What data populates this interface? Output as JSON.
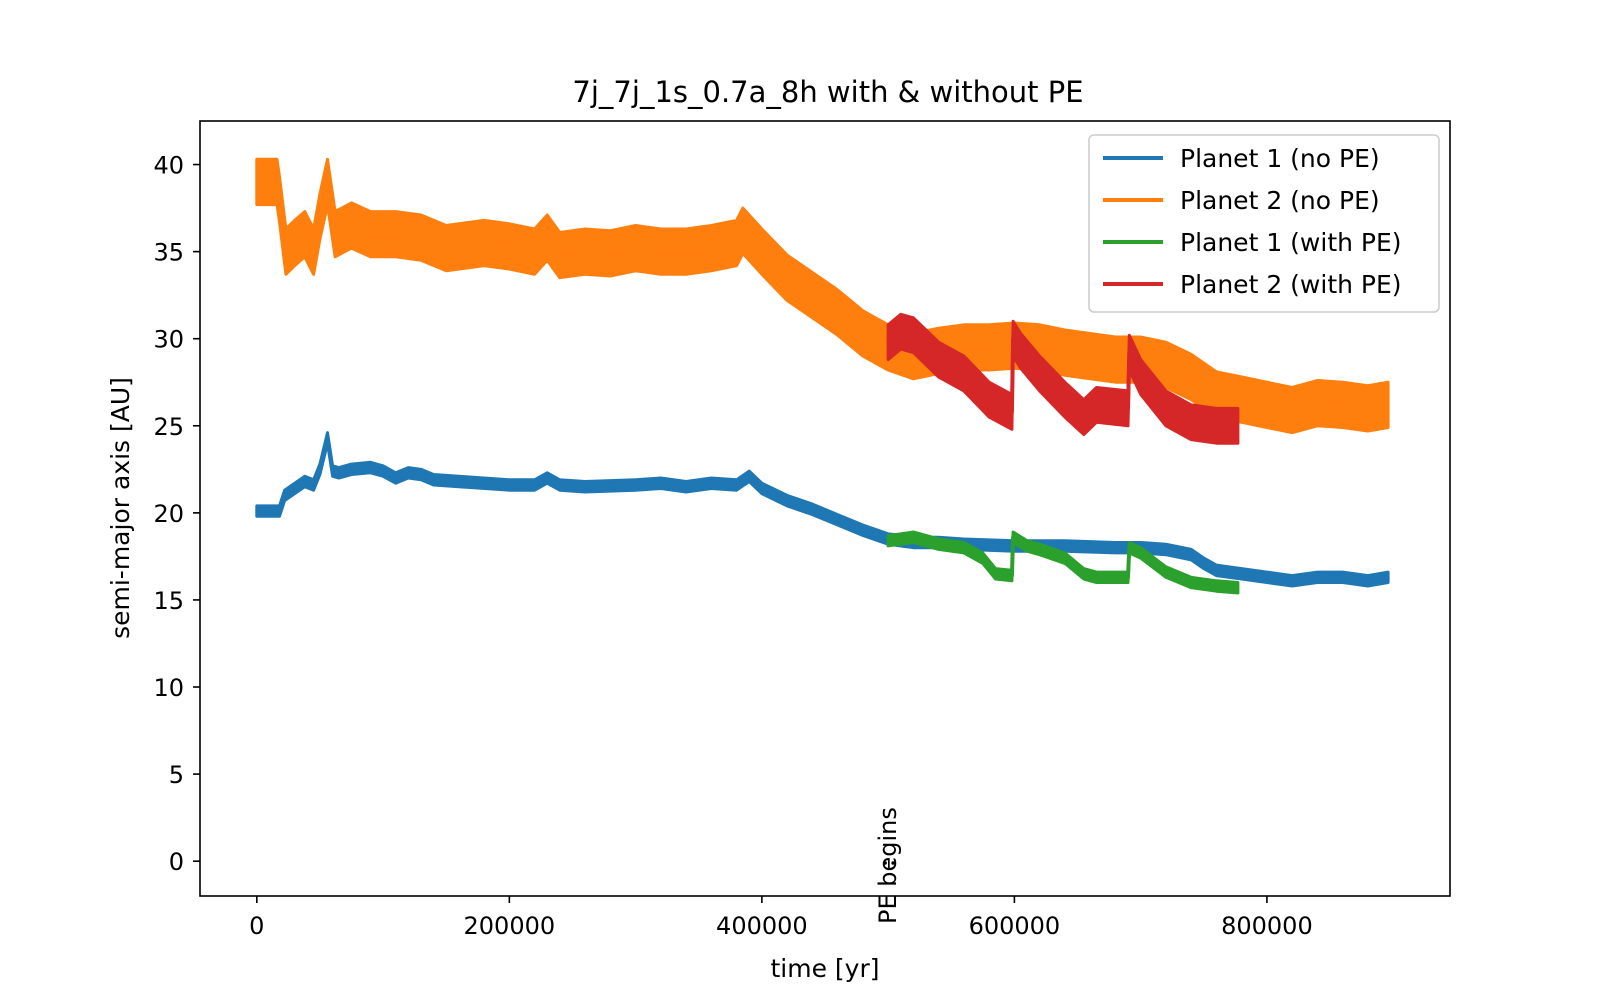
{
  "chart_data": {
    "type": "line",
    "title": "7j_7j_1s_0.7a_8h with & without PE",
    "xlabel": "time [yr]",
    "ylabel": "semi-major axis [AU]",
    "xlim": [
      -45000,
      945000
    ],
    "ylim": [
      -2,
      42.5
    ],
    "xticks": [
      0,
      200000,
      400000,
      600000,
      800000
    ],
    "yticks": [
      0,
      5,
      10,
      15,
      20,
      25,
      30,
      35,
      40
    ],
    "grid": false,
    "legend_position": "top-right",
    "annotation": {
      "text": "PE begins",
      "x": 500000,
      "y": 0,
      "orientation": "vertical"
    },
    "series": [
      {
        "name": "Planet 1 (no PE)",
        "color": "#1f77b4",
        "band": 0.3,
        "x": [
          0,
          18000,
          22000,
          30000,
          38000,
          45000,
          50000,
          56000,
          60000,
          65000,
          75000,
          90000,
          100000,
          110000,
          120000,
          130000,
          140000,
          160000,
          200000,
          220000,
          230000,
          240000,
          260000,
          300000,
          320000,
          340000,
          360000,
          380000,
          390000,
          400000,
          420000,
          440000,
          460000,
          480000,
          500000,
          520000,
          540000,
          560000,
          600000,
          640000,
          680000,
          700000,
          720000,
          740000,
          750000,
          760000,
          780000,
          800000,
          820000,
          840000,
          860000,
          880000,
          896000
        ],
        "y": [
          20.1,
          20.1,
          21.0,
          21.4,
          21.8,
          21.6,
          22.5,
          24.3,
          22.4,
          22.3,
          22.5,
          22.6,
          22.4,
          22.0,
          22.3,
          22.2,
          21.9,
          21.8,
          21.6,
          21.6,
          22.0,
          21.6,
          21.5,
          21.6,
          21.7,
          21.5,
          21.7,
          21.6,
          22.1,
          21.4,
          20.7,
          20.2,
          19.6,
          19.0,
          18.5,
          18.3,
          18.3,
          18.2,
          18.1,
          18.1,
          18.0,
          18.0,
          17.9,
          17.6,
          17.1,
          16.7,
          16.5,
          16.3,
          16.1,
          16.3,
          16.3,
          16.1,
          16.3
        ]
      },
      {
        "name": "Planet 2 (no PE)",
        "color": "#ff7f0e",
        "band": 1.3,
        "x": [
          0,
          16000,
          18000,
          23000,
          30000,
          38000,
          45000,
          50000,
          56000,
          62000,
          75000,
          90000,
          110000,
          130000,
          150000,
          180000,
          200000,
          220000,
          230000,
          240000,
          260000,
          280000,
          300000,
          320000,
          340000,
          360000,
          380000,
          385000,
          400000,
          420000,
          440000,
          460000,
          480000,
          500000,
          520000,
          540000,
          560000,
          580000,
          600000,
          620000,
          640000,
          660000,
          680000,
          700000,
          720000,
          740000,
          760000,
          780000,
          800000,
          820000,
          840000,
          860000,
          880000,
          896000
        ],
        "y": [
          39.0,
          39.0,
          38.0,
          35.0,
          35.5,
          36.0,
          35.0,
          37.0,
          39.0,
          36.0,
          36.5,
          36.0,
          36.0,
          35.8,
          35.2,
          35.5,
          35.3,
          35.0,
          35.8,
          34.8,
          35.0,
          34.9,
          35.2,
          35.0,
          35.0,
          35.2,
          35.5,
          36.2,
          35.0,
          33.5,
          32.5,
          31.5,
          30.3,
          29.5,
          29.0,
          29.3,
          29.5,
          29.5,
          29.6,
          29.5,
          29.2,
          29.0,
          28.8,
          28.8,
          28.5,
          27.8,
          26.8,
          26.5,
          26.2,
          25.9,
          26.3,
          26.2,
          26.0,
          26.2
        ]
      },
      {
        "name": "Planet 1 (with PE)",
        "color": "#2ca02c",
        "band": 0.3,
        "x": [
          500000,
          510000,
          520000,
          530000,
          540000,
          560000,
          575000,
          585000,
          598000,
          599000,
          610000,
          620000,
          640000,
          655000,
          665000,
          690000,
          691000,
          700000,
          720000,
          740000,
          760000,
          777000
        ],
        "y": [
          18.4,
          18.5,
          18.6,
          18.4,
          18.2,
          18.0,
          17.4,
          16.5,
          16.4,
          18.6,
          18.1,
          17.9,
          17.4,
          16.5,
          16.3,
          16.3,
          18.0,
          17.7,
          16.6,
          16.0,
          15.8,
          15.7
        ]
      },
      {
        "name": "Planet 2 (with PE)",
        "color": "#d62728",
        "band": 1.0,
        "x": [
          500000,
          510000,
          520000,
          530000,
          540000,
          560000,
          580000,
          598000,
          599000,
          605000,
          620000,
          640000,
          655000,
          665000,
          690000,
          691000,
          700000,
          720000,
          740000,
          760000,
          777000
        ],
        "y": [
          29.8,
          30.4,
          30.2,
          29.5,
          28.8,
          28.0,
          26.5,
          25.8,
          30.0,
          29.3,
          28.0,
          26.5,
          25.5,
          26.2,
          26.0,
          29.2,
          27.8,
          26.0,
          25.2,
          25.0,
          25.0
        ]
      }
    ]
  }
}
